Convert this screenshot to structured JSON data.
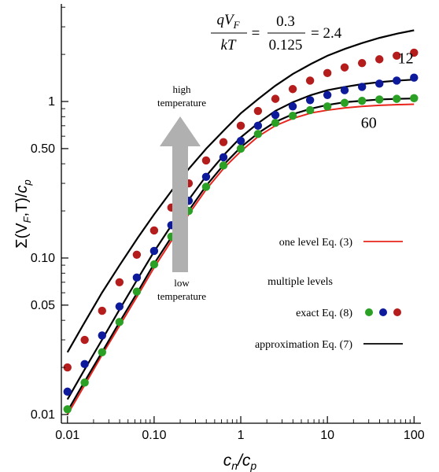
{
  "chart_data": {
    "type": "scatter",
    "title": "",
    "xlabel": "c_n/c_p",
    "ylabel": "Σ(V_F,T)/c_p",
    "xscale": "log",
    "yscale": "log",
    "xlim": [
      0.0085,
      120
    ],
    "ylim": [
      0.0088,
      4.2
    ],
    "grid": false,
    "x_ticks": [
      {
        "value": 0.01,
        "label": "0.01"
      },
      {
        "value": 0.1,
        "label": "0.10"
      },
      {
        "value": 1,
        "label": "1"
      },
      {
        "value": 10,
        "label": "10"
      },
      {
        "value": 100,
        "label": "100"
      }
    ],
    "y_ticks": [
      {
        "value": 0.01,
        "label": "0.01"
      },
      {
        "value": 0.05,
        "label": "0.05"
      },
      {
        "value": 0.1,
        "label": "0.10"
      },
      {
        "value": 0.5,
        "label": "0.50"
      },
      {
        "value": 1,
        "label": "1"
      }
    ],
    "equation": {
      "lhs_num": "qV",
      "lhs_num_sub": "F",
      "lhs_den": "kT",
      "rhs_num": "0.3",
      "rhs_den": "0.125",
      "result": "= 2.4"
    },
    "arrow": {
      "top_label": [
        "high",
        "temperature"
      ],
      "bottom_label": [
        "low",
        "temperature"
      ]
    },
    "curve_labels": [
      {
        "text": "12",
        "x": 80,
        "y": 1.75
      },
      {
        "text": "60",
        "x": 30,
        "y": 0.68
      }
    ],
    "legend": {
      "placement": "lower-right",
      "one_level": "one level Eq. (3)",
      "multiple_levels": "multiple levels",
      "exact": "exact Eq. (8)",
      "approximation": "approximation Eq. (7)"
    },
    "colors": {
      "one_level": "#e8241c",
      "approximation": "#000000",
      "red_dots": "#b51c1c",
      "blue_dots": "#0d1a9c",
      "green_dots": "#2aa024",
      "arrow": "#b0b0b0"
    },
    "series": [
      {
        "kind": "line",
        "color_key": "one_level",
        "x": [
          0.01,
          0.015,
          0.025,
          0.04,
          0.065,
          0.1,
          0.16,
          0.25,
          0.4,
          0.65,
          1,
          1.6,
          2.5,
          4,
          6.5,
          10,
          16,
          25,
          40,
          65,
          100
        ],
        "y": [
          0.01,
          0.0147,
          0.024,
          0.037,
          0.058,
          0.087,
          0.13,
          0.19,
          0.275,
          0.38,
          0.48,
          0.6,
          0.7,
          0.78,
          0.845,
          0.88,
          0.91,
          0.93,
          0.945,
          0.955,
          0.96
        ]
      },
      {
        "kind": "line",
        "color_key": "approximation",
        "x": [
          0.01,
          0.015,
          0.025,
          0.04,
          0.065,
          0.1,
          0.16,
          0.25,
          0.4,
          0.65,
          1,
          1.6,
          2.5,
          4,
          6.5,
          10,
          16,
          25,
          40,
          65,
          100
        ],
        "y": [
          0.0105,
          0.0155,
          0.025,
          0.039,
          0.061,
          0.092,
          0.137,
          0.2,
          0.29,
          0.4,
          0.51,
          0.63,
          0.74,
          0.83,
          0.9,
          0.95,
          0.99,
          1.01,
          1.03,
          1.04,
          1.045
        ]
      },
      {
        "kind": "line",
        "color_key": "approximation",
        "x": [
          0.01,
          0.015,
          0.025,
          0.04,
          0.065,
          0.1,
          0.16,
          0.25,
          0.4,
          0.65,
          1,
          1.6,
          2.5,
          4,
          6.5,
          10,
          16,
          25,
          40,
          65,
          100
        ],
        "y": [
          0.0125,
          0.0185,
          0.03,
          0.047,
          0.074,
          0.11,
          0.163,
          0.235,
          0.335,
          0.46,
          0.59,
          0.73,
          0.87,
          0.99,
          1.1,
          1.18,
          1.24,
          1.29,
          1.33,
          1.36,
          1.38
        ]
      },
      {
        "kind": "line",
        "color_key": "approximation",
        "x": [
          0.01,
          0.015,
          0.025,
          0.04,
          0.065,
          0.1,
          0.16,
          0.25,
          0.4,
          0.65,
          1,
          1.6,
          2.5,
          4,
          6.5,
          10,
          16,
          25,
          40,
          65,
          100
        ],
        "y": [
          0.025,
          0.037,
          0.06,
          0.09,
          0.135,
          0.19,
          0.27,
          0.37,
          0.5,
          0.66,
          0.84,
          1.04,
          1.26,
          1.5,
          1.74,
          1.96,
          2.17,
          2.36,
          2.55,
          2.72,
          2.85
        ]
      },
      {
        "kind": "dots",
        "color_key": "green_dots",
        "x": [
          0.01,
          0.0158,
          0.0251,
          0.0398,
          0.0631,
          0.1,
          0.158,
          0.251,
          0.398,
          0.631,
          1,
          1.58,
          2.51,
          3.98,
          6.31,
          10,
          15.8,
          25.1,
          39.8,
          63.1,
          100
        ],
        "y": [
          0.0108,
          0.016,
          0.025,
          0.039,
          0.061,
          0.091,
          0.137,
          0.2,
          0.285,
          0.39,
          0.5,
          0.62,
          0.73,
          0.81,
          0.88,
          0.93,
          0.98,
          1.01,
          1.03,
          1.04,
          1.05
        ]
      },
      {
        "kind": "dots",
        "color_key": "blue_dots",
        "x": [
          0.01,
          0.0158,
          0.0251,
          0.0398,
          0.0631,
          0.1,
          0.158,
          0.251,
          0.398,
          0.631,
          1,
          1.58,
          2.51,
          3.98,
          6.31,
          10,
          15.8,
          25.1,
          39.8,
          63.1,
          100
        ],
        "y": [
          0.014,
          0.021,
          0.032,
          0.049,
          0.075,
          0.111,
          0.162,
          0.232,
          0.33,
          0.44,
          0.56,
          0.7,
          0.82,
          0.93,
          1.02,
          1.1,
          1.18,
          1.24,
          1.3,
          1.36,
          1.42
        ]
      },
      {
        "kind": "dots",
        "color_key": "red_dots",
        "x": [
          0.01,
          0.0158,
          0.0251,
          0.0398,
          0.0631,
          0.1,
          0.158,
          0.251,
          0.398,
          0.631,
          1,
          1.58,
          2.51,
          3.98,
          6.31,
          10,
          15.8,
          25.1,
          39.8,
          63.1,
          100
        ],
        "y": [
          0.02,
          0.03,
          0.046,
          0.07,
          0.105,
          0.15,
          0.21,
          0.3,
          0.42,
          0.55,
          0.7,
          0.87,
          1.04,
          1.2,
          1.36,
          1.52,
          1.65,
          1.76,
          1.86,
          1.96,
          2.05
        ]
      }
    ]
  }
}
